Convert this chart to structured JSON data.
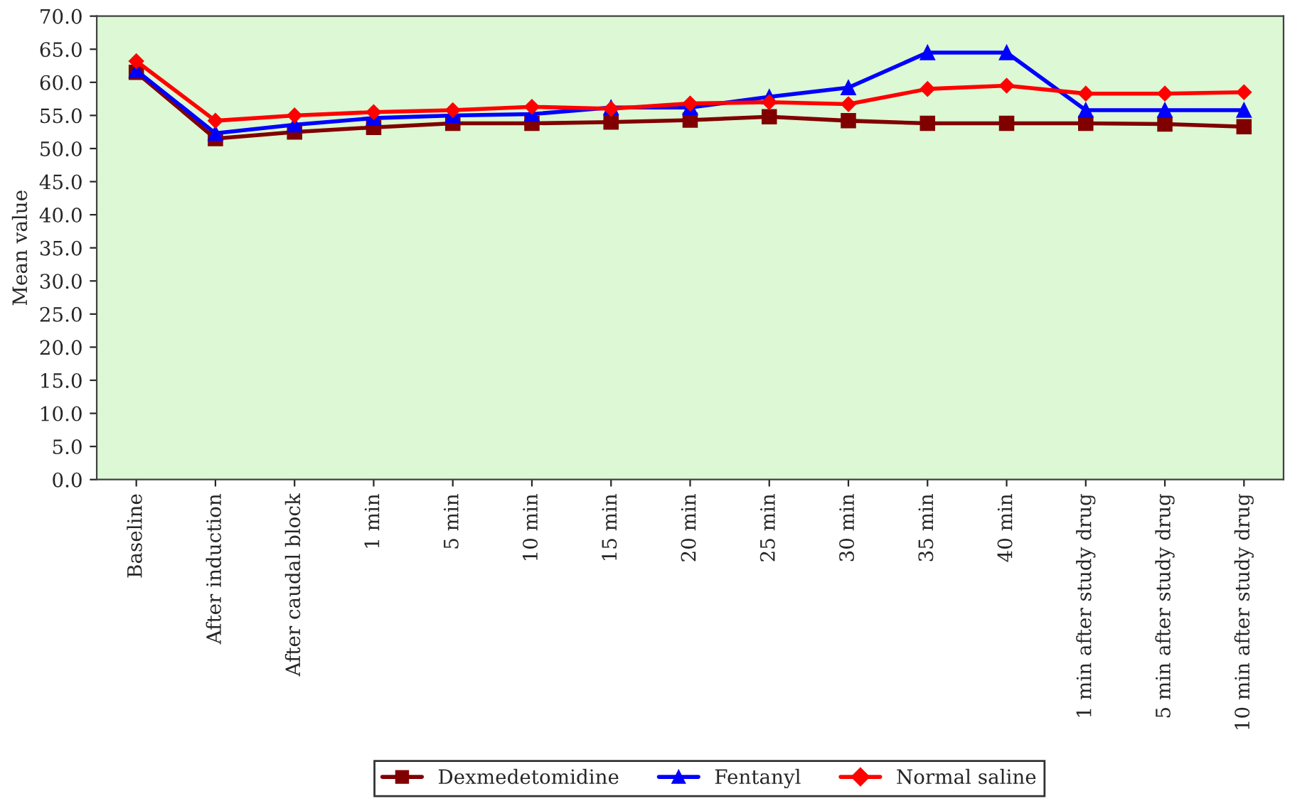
{
  "chart_data": {
    "type": "line",
    "ylabel": "Mean value",
    "categories": [
      "Baseline",
      "After induction",
      "After caudal block",
      "1 min",
      "5 min",
      "10 min",
      "15 min",
      "20 min",
      "25 min",
      "30 min",
      "35 min",
      "40 min",
      "1 min after study drug",
      "5 min after study drug",
      "10 min after study drug"
    ],
    "series": [
      {
        "name": "Dexmedetomidine",
        "color": "#800000",
        "marker": "square",
        "values": [
          61.5,
          51.5,
          52.5,
          53.2,
          53.8,
          53.8,
          54.0,
          54.3,
          54.8,
          54.2,
          53.8,
          53.8,
          53.8,
          53.7,
          53.3
        ]
      },
      {
        "name": "Fentanyl",
        "color": "#0000ff",
        "marker": "triangle",
        "values": [
          61.8,
          52.3,
          53.6,
          54.6,
          55.0,
          55.2,
          56.2,
          56.2,
          57.8,
          59.2,
          64.5,
          64.5,
          55.8,
          55.8,
          55.8
        ]
      },
      {
        "name": "Normal saline",
        "color": "#ff0000",
        "marker": "diamond",
        "values": [
          63.2,
          54.2,
          55.0,
          55.5,
          55.8,
          56.3,
          56.0,
          56.8,
          57.0,
          56.7,
          59.0,
          59.5,
          58.3,
          58.3,
          58.5
        ]
      }
    ],
    "ylim": [
      0,
      70
    ],
    "yticks": [
      {
        "value": 0,
        "label": "0.0"
      },
      {
        "value": 5,
        "label": "5.0"
      },
      {
        "value": 10,
        "label": "10.0"
      },
      {
        "value": 15,
        "label": "15.0"
      },
      {
        "value": 20,
        "label": "20.0"
      },
      {
        "value": 25,
        "label": "25.0"
      },
      {
        "value": 30,
        "label": "30.0"
      },
      {
        "value": 35,
        "label": "35.0"
      },
      {
        "value": 40,
        "label": "40.0"
      },
      {
        "value": 45,
        "label": "45.0"
      },
      {
        "value": 50,
        "label": "50.0"
      },
      {
        "value": 55,
        "label": "55.0"
      },
      {
        "value": 60,
        "label": "60.0"
      },
      {
        "value": 65,
        "label": "65.0"
      },
      {
        "value": 70,
        "label": "70.0"
      }
    ],
    "grid": false,
    "legend": "bottom",
    "line_style": "solid"
  }
}
